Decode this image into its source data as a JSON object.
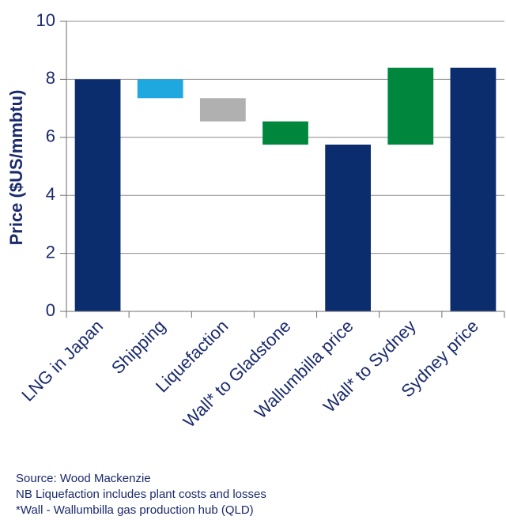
{
  "chart_data": {
    "type": "bar",
    "subtype": "waterfall",
    "ylabel": "Price ($US/mmbtu)",
    "xlabel": "",
    "ylim": [
      0,
      10
    ],
    "yticks": [
      0,
      2,
      4,
      6,
      8,
      10
    ],
    "grid": true,
    "categories": [
      "LNG in Japan",
      "Shipping",
      "Liquefaction",
      "Wall* to Gladstone",
      "Wallumbilla price",
      "Wall* to Sydney",
      "Sydney price"
    ],
    "bars": [
      {
        "category": "LNG in Japan",
        "bottom": 0,
        "top": 8.0,
        "color": "#0b2d6e"
      },
      {
        "category": "Shipping",
        "bottom": 7.35,
        "top": 8.0,
        "color": "#1fa7e0"
      },
      {
        "category": "Liquefaction",
        "bottom": 6.55,
        "top": 7.35,
        "color": "#b0b0b0"
      },
      {
        "category": "Wall* to Gladstone",
        "bottom": 5.75,
        "top": 6.55,
        "color": "#00873e"
      },
      {
        "category": "Wallumbilla price",
        "bottom": 0,
        "top": 5.75,
        "color": "#0b2d6e"
      },
      {
        "category": "Wall* to Sydney",
        "bottom": 5.75,
        "top": 8.4,
        "color": "#00873e"
      },
      {
        "category": "Sydney price",
        "bottom": 0,
        "top": 8.4,
        "color": "#0b2d6e"
      }
    ]
  },
  "notes": {
    "source": "Source: Wood Mackenzie",
    "nb": "NB Liquefaction includes plant costs and losses",
    "wall": "*Wall - Wallumbilla gas production hub (QLD)"
  }
}
